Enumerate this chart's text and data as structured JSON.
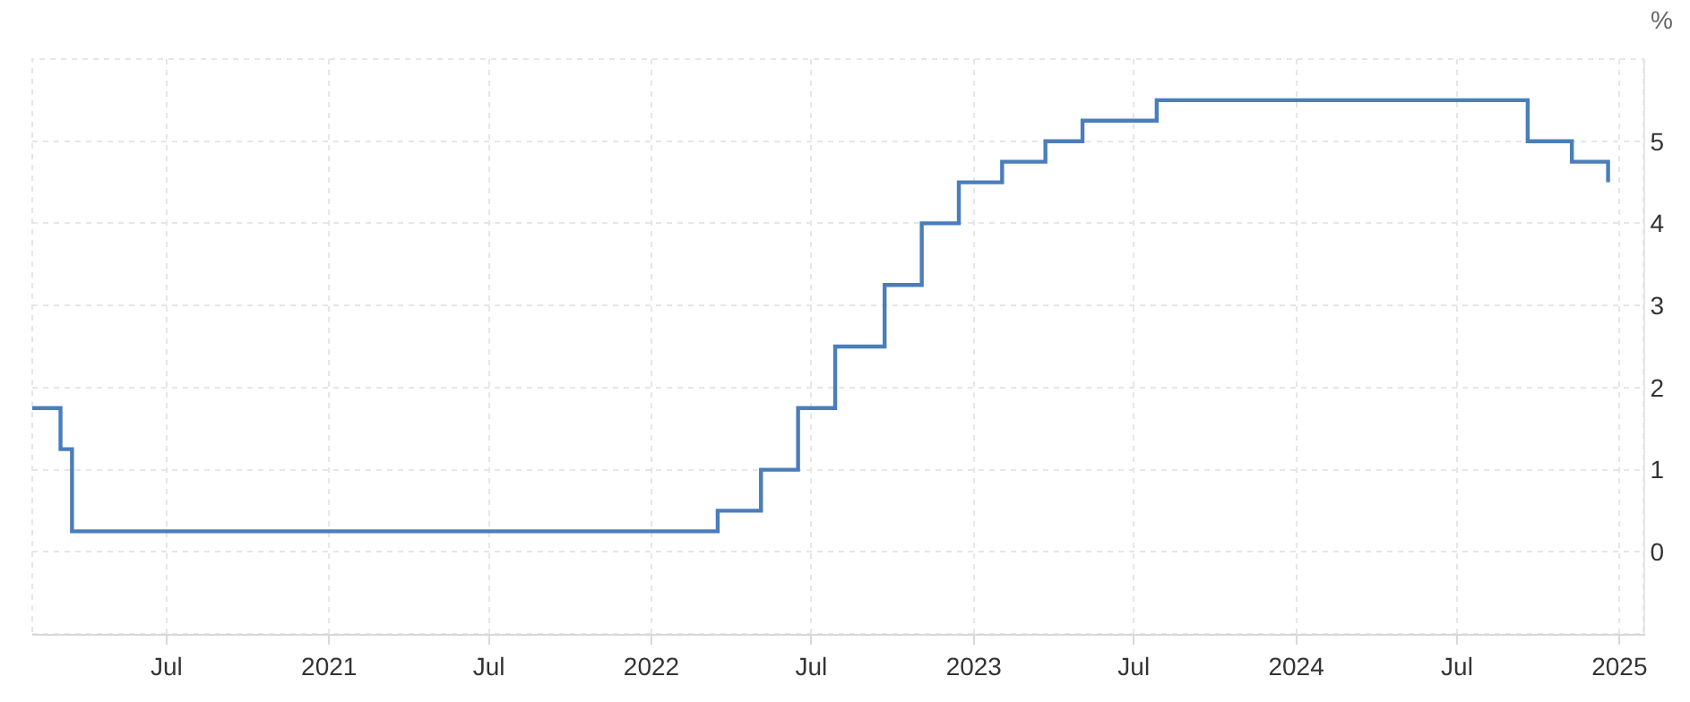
{
  "chart_data": {
    "type": "step",
    "ylabel": "%",
    "x": [
      "2020-01-31",
      "2020-03-03",
      "2020-03-16",
      "2022-03-17",
      "2022-05-05",
      "2022-06-16",
      "2022-07-28",
      "2022-09-22",
      "2022-11-03",
      "2022-12-15",
      "2023-02-02",
      "2023-03-23",
      "2023-05-04",
      "2023-07-27",
      "2024-09-19",
      "2024-11-08",
      "2024-12-19"
    ],
    "series": [
      {
        "color": "#4a7ebb",
        "values": [
          1.75,
          1.25,
          0.25,
          0.5,
          1.0,
          1.75,
          2.5,
          3.25,
          4.0,
          4.5,
          4.75,
          5.0,
          5.25,
          5.5,
          5.0,
          4.75,
          4.5
        ]
      }
    ],
    "xlim": [
      "2020-01-31",
      "2025-01-28"
    ],
    "xticks": [
      {
        "value": "2020-07-01",
        "label": "Jul"
      },
      {
        "value": "2021-01-01",
        "label": "2021"
      },
      {
        "value": "2021-07-01",
        "label": "Jul"
      },
      {
        "value": "2022-01-01",
        "label": "2022"
      },
      {
        "value": "2022-07-01",
        "label": "Jul"
      },
      {
        "value": "2023-01-01",
        "label": "2023"
      },
      {
        "value": "2023-07-01",
        "label": "Jul"
      },
      {
        "value": "2024-01-01",
        "label": "2024"
      },
      {
        "value": "2024-07-01",
        "label": "Jul"
      },
      {
        "value": "2025-01-01",
        "label": "2025"
      }
    ],
    "ylim": [
      -1,
      6
    ],
    "yticks": [
      0,
      1,
      2,
      3,
      4,
      5
    ],
    "grid": true,
    "legend": false,
    "line_style": "solid",
    "marker": "none"
  }
}
